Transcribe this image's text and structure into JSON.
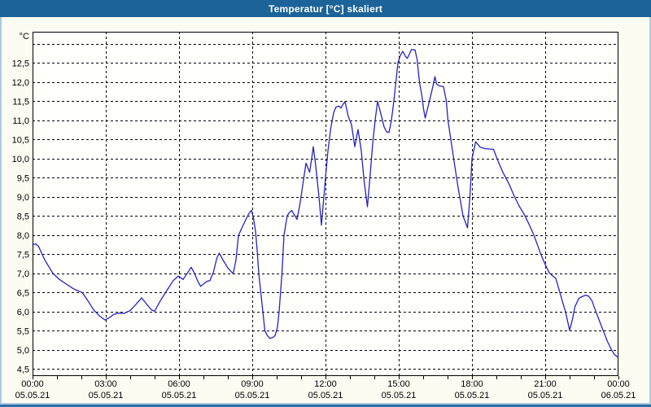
{
  "window": {
    "title": "Temperatur [°C] skaliert"
  },
  "colors": {
    "titlebar_bg": "#1B6399",
    "titlebar_text": "#FFFFFF",
    "panel_bg": "#FCFCF2",
    "plot_bg": "#FFFFFC",
    "plot_border": "#000000",
    "grid": "#000000",
    "axis_label": "#000000",
    "line": "#2323C2",
    "frame_side": "#A9CBE3",
    "frame_bottom": "#2F6FA3"
  },
  "chart_data": {
    "type": "line",
    "title": "Temperatur [°C] skaliert",
    "grid": true,
    "y_axis": {
      "unit": "°C",
      "min": 4.5,
      "max": 13.0,
      "grid_step": 0.5,
      "tick_labels": [
        {
          "value": 12.5,
          "label": "12,5"
        },
        {
          "value": 12.0,
          "label": "12,0"
        },
        {
          "value": 11.5,
          "label": "11,5"
        },
        {
          "value": 11.0,
          "label": "11,0"
        },
        {
          "value": 10.5,
          "label": "10,5"
        },
        {
          "value": 10.0,
          "label": "10,0"
        },
        {
          "value": 9.5,
          "label": "9,5"
        },
        {
          "value": 9.0,
          "label": "9,0"
        },
        {
          "value": 8.5,
          "label": "8,5"
        },
        {
          "value": 8.0,
          "label": "8,0"
        },
        {
          "value": 7.5,
          "label": "7,5"
        },
        {
          "value": 7.0,
          "label": "7,0"
        },
        {
          "value": 6.5,
          "label": "6,5"
        },
        {
          "value": 6.0,
          "label": "6,0"
        },
        {
          "value": 5.5,
          "label": "5,5"
        },
        {
          "value": 5.0,
          "label": "5,0"
        },
        {
          "value": 4.5,
          "label": "4,5"
        }
      ]
    },
    "x_axis": {
      "span_hours": 24,
      "minor_tick_interval_hours": 1,
      "major_grid_interval_hours": 3,
      "major_ticks": [
        {
          "hour": 0,
          "time": "00:00",
          "date": "05.05.21"
        },
        {
          "hour": 3,
          "time": "03:00",
          "date": "05.05.21"
        },
        {
          "hour": 6,
          "time": "06:00",
          "date": "05.05.21"
        },
        {
          "hour": 9,
          "time": "09:00",
          "date": "05.05.21"
        },
        {
          "hour": 12,
          "time": "12:00",
          "date": "05.05.21"
        },
        {
          "hour": 15,
          "time": "15:00",
          "date": "05.05.21"
        },
        {
          "hour": 18,
          "time": "18:00",
          "date": "05.05.21"
        },
        {
          "hour": 21,
          "time": "21:00",
          "date": "05.05.21"
        },
        {
          "hour": 24,
          "time": "00:00",
          "date": "06.05.21"
        }
      ]
    },
    "series": [
      {
        "points_format": "[minutes_since_midnight, temperature_celsius]",
        "points": [
          [
            0,
            7.75
          ],
          [
            8,
            7.77
          ],
          [
            15,
            7.7
          ],
          [
            30,
            7.35
          ],
          [
            50,
            7.0
          ],
          [
            65,
            6.85
          ],
          [
            83,
            6.72
          ],
          [
            100,
            6.6
          ],
          [
            110,
            6.55
          ],
          [
            122,
            6.5
          ],
          [
            135,
            6.3
          ],
          [
            150,
            6.05
          ],
          [
            165,
            5.88
          ],
          [
            178,
            5.78
          ],
          [
            190,
            5.85
          ],
          [
            200,
            5.93
          ],
          [
            212,
            5.96
          ],
          [
            225,
            5.95
          ],
          [
            240,
            6.03
          ],
          [
            255,
            6.2
          ],
          [
            268,
            6.36
          ],
          [
            280,
            6.2
          ],
          [
            292,
            6.05
          ],
          [
            300,
            6.01
          ],
          [
            315,
            6.3
          ],
          [
            330,
            6.55
          ],
          [
            345,
            6.8
          ],
          [
            358,
            6.93
          ],
          [
            370,
            6.84
          ],
          [
            380,
            7.0
          ],
          [
            390,
            7.16
          ],
          [
            398,
            7.0
          ],
          [
            405,
            6.82
          ],
          [
            413,
            6.66
          ],
          [
            420,
            6.72
          ],
          [
            428,
            6.79
          ],
          [
            436,
            6.81
          ],
          [
            445,
            7.05
          ],
          [
            453,
            7.4
          ],
          [
            459,
            7.53
          ],
          [
            468,
            7.35
          ],
          [
            480,
            7.14
          ],
          [
            493,
            6.99
          ],
          [
            500,
            7.35
          ],
          [
            506,
            7.99
          ],
          [
            515,
            8.2
          ],
          [
            524,
            8.4
          ],
          [
            531,
            8.55
          ],
          [
            538,
            8.65
          ],
          [
            543,
            8.45
          ],
          [
            548,
            8.1
          ],
          [
            552,
            7.6
          ],
          [
            556,
            7.0
          ],
          [
            562,
            6.4
          ],
          [
            566,
            6.0
          ],
          [
            571,
            5.5
          ],
          [
            576,
            5.39
          ],
          [
            583,
            5.3
          ],
          [
            590,
            5.32
          ],
          [
            596,
            5.37
          ],
          [
            602,
            5.6
          ],
          [
            606,
            6.0
          ],
          [
            613,
            7.0
          ],
          [
            618,
            8.0
          ],
          [
            626,
            8.51
          ],
          [
            632,
            8.6
          ],
          [
            637,
            8.64
          ],
          [
            644,
            8.52
          ],
          [
            650,
            8.41
          ],
          [
            657,
            8.8
          ],
          [
            664,
            9.3
          ],
          [
            672,
            9.88
          ],
          [
            677,
            9.75
          ],
          [
            681,
            9.64
          ],
          [
            686,
            10.0
          ],
          [
            690,
            10.31
          ],
          [
            695,
            9.9
          ],
          [
            700,
            9.4
          ],
          [
            704,
            9.0
          ],
          [
            710,
            8.26
          ],
          [
            716,
            9.0
          ],
          [
            720,
            9.5
          ],
          [
            726,
            10.2
          ],
          [
            733,
            10.8
          ],
          [
            740,
            11.2
          ],
          [
            746,
            11.35
          ],
          [
            753,
            11.37
          ],
          [
            758,
            11.32
          ],
          [
            762,
            11.4
          ],
          [
            768,
            11.49
          ],
          [
            776,
            11.1
          ],
          [
            784,
            10.88
          ],
          [
            792,
            10.31
          ],
          [
            797,
            10.6
          ],
          [
            800,
            10.76
          ],
          [
            808,
            10.2
          ],
          [
            815,
            9.4
          ],
          [
            823,
            8.74
          ],
          [
            830,
            9.6
          ],
          [
            836,
            10.4
          ],
          [
            842,
            11.0
          ],
          [
            848,
            11.5
          ],
          [
            856,
            11.17
          ],
          [
            864,
            10.83
          ],
          [
            870,
            10.7
          ],
          [
            876,
            10.68
          ],
          [
            882,
            11.0
          ],
          [
            888,
            11.5
          ],
          [
            894,
            12.1
          ],
          [
            898,
            12.5
          ],
          [
            904,
            12.7
          ],
          [
            910,
            12.8
          ],
          [
            916,
            12.68
          ],
          [
            921,
            12.62
          ],
          [
            927,
            12.75
          ],
          [
            931,
            12.85
          ],
          [
            940,
            12.84
          ],
          [
            945,
            12.6
          ],
          [
            951,
            12.0
          ],
          [
            957,
            11.63
          ],
          [
            961,
            11.3
          ],
          [
            965,
            11.06
          ],
          [
            973,
            11.4
          ],
          [
            983,
            11.84
          ],
          [
            989,
            12.14
          ],
          [
            993,
            11.95
          ],
          [
            1000,
            11.9
          ],
          [
            1010,
            11.88
          ],
          [
            1017,
            11.5
          ],
          [
            1021,
            11.0
          ],
          [
            1028,
            10.5
          ],
          [
            1035,
            10.0
          ],
          [
            1045,
            9.3
          ],
          [
            1058,
            8.5
          ],
          [
            1069,
            8.19
          ],
          [
            1075,
            9.0
          ],
          [
            1080,
            10.0
          ],
          [
            1089,
            10.44
          ],
          [
            1100,
            10.3
          ],
          [
            1112,
            10.26
          ],
          [
            1125,
            10.25
          ],
          [
            1133,
            10.24
          ],
          [
            1143,
            9.96
          ],
          [
            1156,
            9.64
          ],
          [
            1170,
            9.36
          ],
          [
            1183,
            9.04
          ],
          [
            1196,
            8.76
          ],
          [
            1210,
            8.51
          ],
          [
            1223,
            8.22
          ],
          [
            1232,
            8.0
          ],
          [
            1250,
            7.48
          ],
          [
            1260,
            7.23
          ],
          [
            1270,
            7.01
          ],
          [
            1280,
            6.92
          ],
          [
            1286,
            6.87
          ],
          [
            1296,
            6.5
          ],
          [
            1303,
            6.24
          ],
          [
            1310,
            5.99
          ],
          [
            1320,
            5.51
          ],
          [
            1327,
            5.8
          ],
          [
            1333,
            6.13
          ],
          [
            1343,
            6.35
          ],
          [
            1352,
            6.4
          ],
          [
            1360,
            6.43
          ],
          [
            1367,
            6.4
          ],
          [
            1375,
            6.28
          ],
          [
            1380,
            6.13
          ],
          [
            1390,
            5.85
          ],
          [
            1400,
            5.57
          ],
          [
            1413,
            5.22
          ],
          [
            1423,
            5.0
          ],
          [
            1430,
            4.88
          ],
          [
            1438,
            4.81
          ]
        ]
      }
    ]
  }
}
